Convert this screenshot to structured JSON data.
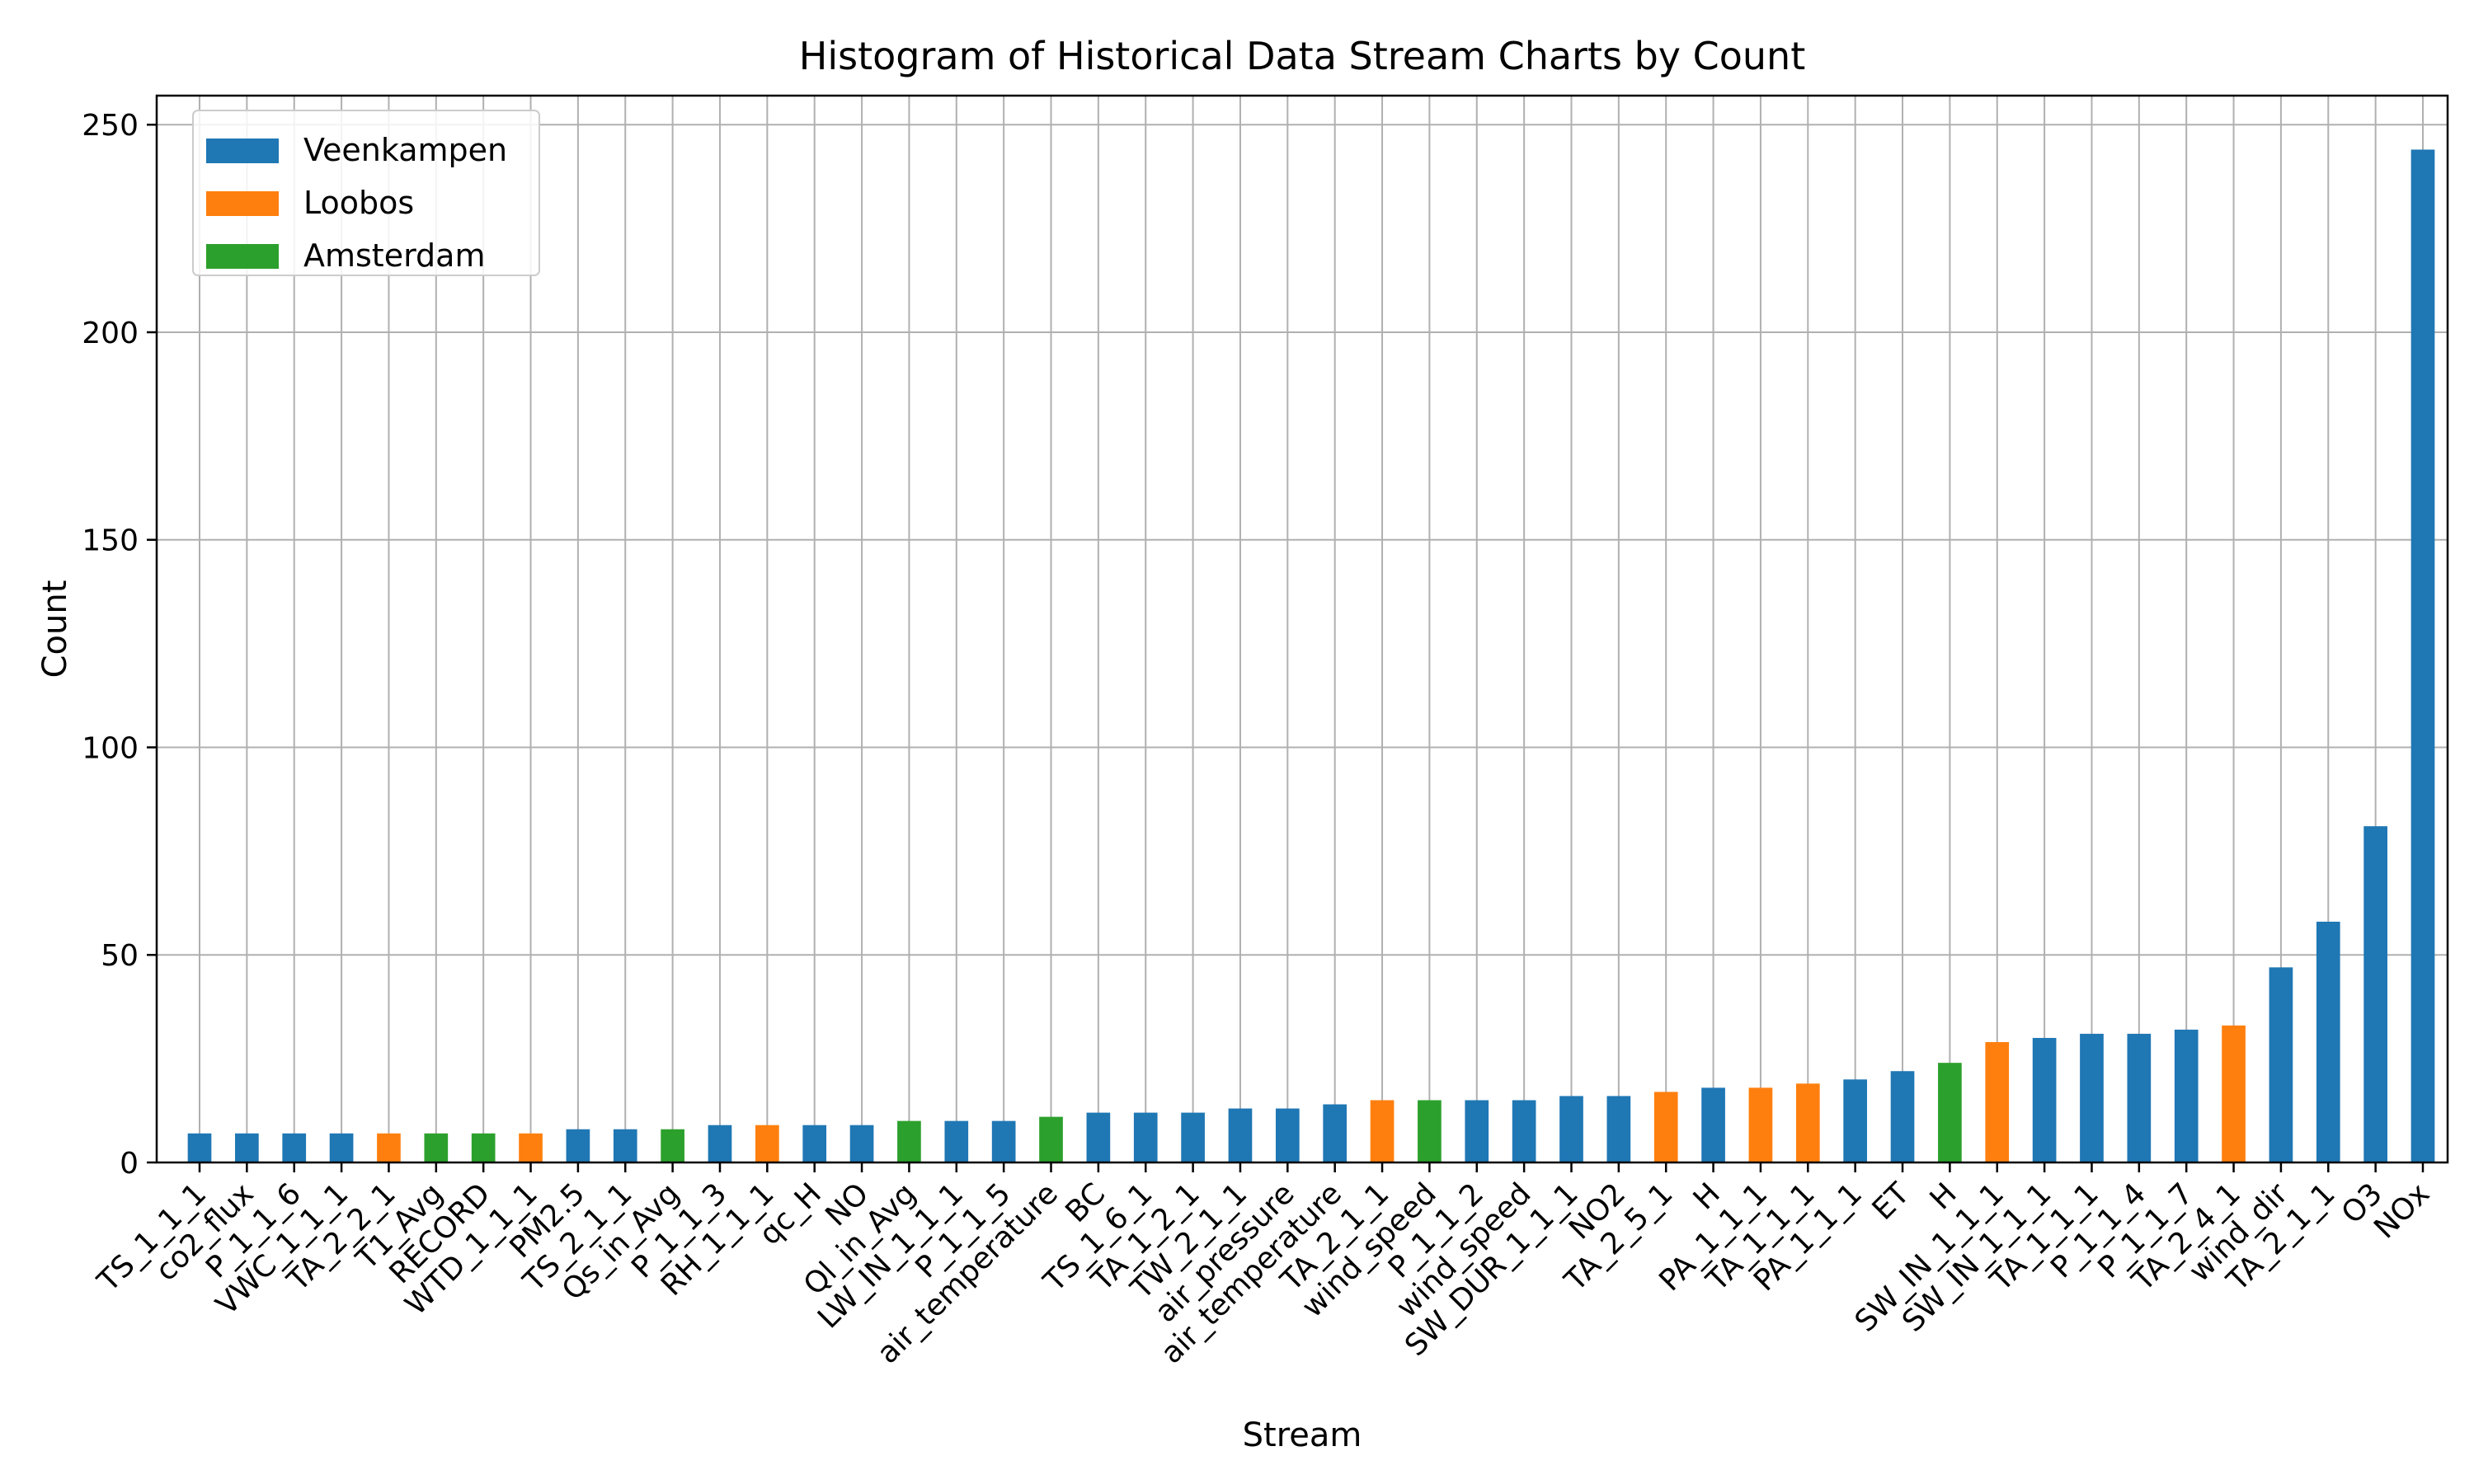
{
  "chart_data": {
    "type": "bar",
    "title": "Histogram of Historical Data Stream Charts by Count",
    "xlabel": "Stream",
    "ylabel": "Count",
    "ylim": [
      0,
      257
    ],
    "yticks": [
      0,
      50,
      100,
      150,
      200,
      250
    ],
    "grid": true,
    "legend_position": "top-left",
    "series": [
      {
        "name": "Veenkampen",
        "color": "#1f77b4"
      },
      {
        "name": "Loobos",
        "color": "#ff7f0e"
      },
      {
        "name": "Amsterdam",
        "color": "#2ca02c"
      }
    ],
    "bars": [
      {
        "category": "TS_1_1_1",
        "value": 7,
        "series": "Veenkampen"
      },
      {
        "category": "co2_flux",
        "value": 7,
        "series": "Veenkampen"
      },
      {
        "category": "P_1_1_6",
        "value": 7,
        "series": "Veenkampen"
      },
      {
        "category": "VWC_1_1_1",
        "value": 7,
        "series": "Veenkampen"
      },
      {
        "category": "TA_2_2_1",
        "value": 7,
        "series": "Loobos"
      },
      {
        "category": "T1_Avg",
        "value": 7,
        "series": "Amsterdam"
      },
      {
        "category": "RECORD",
        "value": 7,
        "series": "Amsterdam"
      },
      {
        "category": "WTD_1_1_1",
        "value": 7,
        "series": "Loobos"
      },
      {
        "category": "PM2.5",
        "value": 8,
        "series": "Veenkampen"
      },
      {
        "category": "TS_2_1_1",
        "value": 8,
        "series": "Veenkampen"
      },
      {
        "category": "Qs_in_Avg",
        "value": 8,
        "series": "Amsterdam"
      },
      {
        "category": "P_1_1_3",
        "value": 9,
        "series": "Veenkampen"
      },
      {
        "category": "RH_1_1_1",
        "value": 9,
        "series": "Loobos"
      },
      {
        "category": "qc_H",
        "value": 9,
        "series": "Veenkampen"
      },
      {
        "category": "NO",
        "value": 9,
        "series": "Veenkampen"
      },
      {
        "category": "Ql_in_Avg",
        "value": 10,
        "series": "Amsterdam"
      },
      {
        "category": "LW_IN_1_1_1",
        "value": 10,
        "series": "Veenkampen"
      },
      {
        "category": "P_1_1_5",
        "value": 10,
        "series": "Veenkampen"
      },
      {
        "category": "air_temperature",
        "value": 11,
        "series": "Amsterdam"
      },
      {
        "category": "BC",
        "value": 12,
        "series": "Veenkampen"
      },
      {
        "category": "TS_1_6_1",
        "value": 12,
        "series": "Veenkampen"
      },
      {
        "category": "TA_1_2_1",
        "value": 12,
        "series": "Veenkampen"
      },
      {
        "category": "TW_2_1_1",
        "value": 13,
        "series": "Veenkampen"
      },
      {
        "category": "air_pressure",
        "value": 13,
        "series": "Veenkampen"
      },
      {
        "category": "air_temperature",
        "value": 14,
        "series": "Veenkampen"
      },
      {
        "category": "TA_2_1_1",
        "value": 15,
        "series": "Loobos"
      },
      {
        "category": "wind_speed",
        "value": 15,
        "series": "Amsterdam"
      },
      {
        "category": "P_1_1_2",
        "value": 15,
        "series": "Veenkampen"
      },
      {
        "category": "wind_speed",
        "value": 15,
        "series": "Veenkampen"
      },
      {
        "category": "SW_DUR_1_1_1",
        "value": 16,
        "series": "Veenkampen"
      },
      {
        "category": "NO2",
        "value": 16,
        "series": "Veenkampen"
      },
      {
        "category": "TA_2_5_1",
        "value": 17,
        "series": "Loobos"
      },
      {
        "category": "H",
        "value": 18,
        "series": "Veenkampen"
      },
      {
        "category": "PA_1_1_1",
        "value": 18,
        "series": "Loobos"
      },
      {
        "category": "TA_1_1_1",
        "value": 19,
        "series": "Loobos"
      },
      {
        "category": "PA_1_1_1",
        "value": 20,
        "series": "Veenkampen"
      },
      {
        "category": "ET",
        "value": 22,
        "series": "Veenkampen"
      },
      {
        "category": "H",
        "value": 24,
        "series": "Amsterdam"
      },
      {
        "category": "SW_IN_1_1_1",
        "value": 29,
        "series": "Loobos"
      },
      {
        "category": "SW_IN_1_1_1",
        "value": 30,
        "series": "Veenkampen"
      },
      {
        "category": "TA_1_1_1",
        "value": 31,
        "series": "Veenkampen"
      },
      {
        "category": "P_1_1_4",
        "value": 31,
        "series": "Veenkampen"
      },
      {
        "category": "P_1_1_7",
        "value": 32,
        "series": "Veenkampen"
      },
      {
        "category": "TA_2_4_1",
        "value": 33,
        "series": "Loobos"
      },
      {
        "category": "wind_dir",
        "value": 47,
        "series": "Veenkampen"
      },
      {
        "category": "TA_2_1_1",
        "value": 58,
        "series": "Veenkampen"
      },
      {
        "category": "O3",
        "value": 81,
        "series": "Veenkampen"
      },
      {
        "category": "NOx",
        "value": 244,
        "series": "Veenkampen"
      }
    ]
  }
}
